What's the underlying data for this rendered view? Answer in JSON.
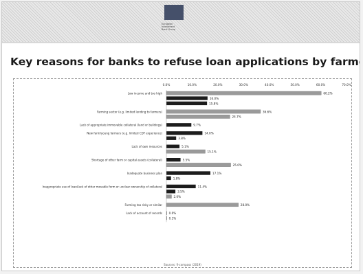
{
  "logo": {
    "text": "European\nInvestment\nBank Group",
    "flag_color": "#45506a"
  },
  "title": "Key reasons for banks to refuse loan applications by farmers",
  "footnote": "Sources: fi-compass (2019)",
  "chart_data": {
    "type": "bar",
    "orientation": "horizontal",
    "title": "Key reasons for banks to refuse loan applications by farmers",
    "xlim": [
      0,
      70
    ],
    "x_ticks": [
      "0.0%",
      "10.0%",
      "20.0%",
      "30.0%",
      "40.0%",
      "50.0%",
      "60.0%",
      "70.0%"
    ],
    "grid": false,
    "categories": [
      "Low income and too high",
      "Farming sector (e.g. limited lending to farmers)",
      "Lack of appropriate immovable collateral (land or buildings)",
      "New farm/young farmers (e.g. limited CDF experience)",
      "Lack of own resources",
      "Shortage of other farm or capital assets (collateral)",
      "Inadequate business plan",
      "Inappropriate use of loan/lack of other movable form or unclear ownership of collateral",
      "Farming too risky or similar",
      "Lack of account of records"
    ],
    "bar_groups": [
      [
        {
          "value": 60.2,
          "label": "60.2%",
          "style": "gray"
        },
        {
          "value": 16.0,
          "label": "16.0%",
          "style": "black"
        },
        {
          "value": 15.8,
          "label": "15.8%",
          "style": "black"
        }
      ],
      [
        {
          "value": 36.6,
          "label": "36.6%",
          "style": "gray"
        },
        {
          "value": 24.7,
          "label": "24.7%",
          "style": "gray"
        }
      ],
      [
        {
          "value": 9.7,
          "label": "9.7%",
          "style": "black"
        }
      ],
      [
        {
          "value": 14.0,
          "label": "14.0%",
          "style": "black"
        },
        {
          "value": 3.8,
          "label": "3.8%",
          "style": "black"
        }
      ],
      [
        {
          "value": 5.1,
          "label": "5.1%",
          "style": "black"
        },
        {
          "value": 15.1,
          "label": "15.1%",
          "style": "gray"
        }
      ],
      [
        {
          "value": 5.5,
          "label": "5.5%",
          "style": "black"
        },
        {
          "value": 25.0,
          "label": "25.0%",
          "style": "gray"
        }
      ],
      [
        {
          "value": 17.1,
          "label": "17.1%",
          "style": "black"
        },
        {
          "value": 1.8,
          "label": "1.8%",
          "style": "black"
        }
      ],
      [
        {
          "value": 11.4,
          "label": "11.4%",
          "style": "black"
        },
        {
          "value": 3.5,
          "label": "3.5%",
          "style": "black"
        },
        {
          "value": 2.0,
          "label": "2.0%",
          "style": "gray"
        }
      ],
      [
        {
          "value": 28.0,
          "label": "28.0%",
          "style": "gray"
        }
      ],
      [
        {
          "value": 0.0,
          "label": "0.0%",
          "style": "black"
        },
        {
          "value": 0.1,
          "label": "0.1%",
          "style": "black"
        }
      ]
    ],
    "colors": {
      "black": "#1c1c1c",
      "gray": "#9a9a9a"
    }
  }
}
